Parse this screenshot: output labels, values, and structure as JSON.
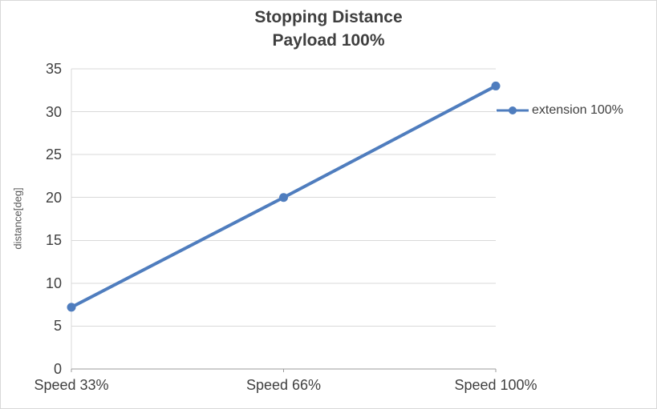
{
  "chart_data": {
    "type": "line",
    "title_line1": "Stopping Distance",
    "title_line2": "Payload 100%",
    "ylabel": "distance[deg]",
    "categories": [
      "Speed 33%",
      "Speed 66%",
      "Speed 100%"
    ],
    "series": [
      {
        "name": "extension 100%",
        "values": [
          7.2,
          20,
          33
        ]
      }
    ],
    "ylim": [
      0,
      35
    ],
    "ytick_interval": 5,
    "grid": true,
    "legend_position": "right",
    "colors": {
      "line": "#4f7dbe",
      "grid": "#d9d9d9",
      "axis": "#9b9b9b",
      "title_text": "#3f3f3f",
      "tick_text": "#404040",
      "ylabel_text": "#595959"
    }
  }
}
